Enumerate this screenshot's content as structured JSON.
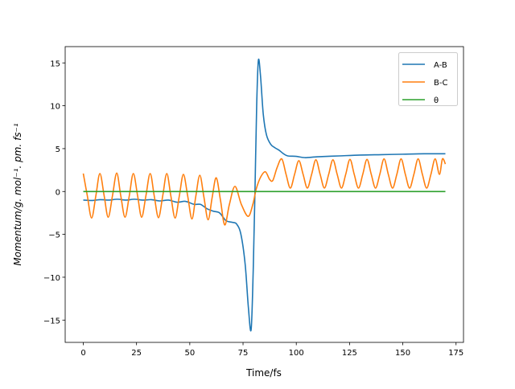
{
  "chart_data": {
    "type": "line",
    "title": "",
    "xlabel": "Time/fs",
    "ylabel": "Momentum/g. mol⁻¹. pm. fs⁻¹",
    "xlim": [
      -8.5,
      178.5
    ],
    "ylim": [
      -17.6,
      16.9
    ],
    "xticks": [
      0,
      25,
      50,
      75,
      100,
      125,
      150,
      175
    ],
    "yticks": [
      -15,
      -10,
      -5,
      0,
      5,
      10,
      15
    ],
    "grid": false,
    "legend_position": "top-right",
    "series": [
      {
        "name": "A-B",
        "color": "#1f77b4",
        "points": [
          [
            0,
            -1.0
          ],
          [
            4,
            -1.05
          ],
          [
            8,
            -0.95
          ],
          [
            12,
            -1.0
          ],
          [
            16,
            -0.9
          ],
          [
            20,
            -1.0
          ],
          [
            24,
            -0.9
          ],
          [
            28,
            -1.0
          ],
          [
            32,
            -0.95
          ],
          [
            36,
            -1.1
          ],
          [
            40,
            -1.0
          ],
          [
            44,
            -1.25
          ],
          [
            48,
            -1.15
          ],
          [
            52,
            -1.5
          ],
          [
            55,
            -1.5
          ],
          [
            58,
            -2.0
          ],
          [
            61,
            -2.3
          ],
          [
            64,
            -2.5
          ],
          [
            67,
            -3.4
          ],
          [
            70,
            -3.6
          ],
          [
            72,
            -3.8
          ],
          [
            74,
            -5.0
          ],
          [
            76,
            -8.5
          ],
          [
            77.5,
            -13.5
          ],
          [
            78.8,
            -16.1
          ],
          [
            79.8,
            -9.0
          ],
          [
            80.6,
            0.0
          ],
          [
            81.4,
            10.0
          ],
          [
            82.2,
            15.3
          ],
          [
            83.2,
            13.5
          ],
          [
            84.5,
            9.0
          ],
          [
            86,
            6.6
          ],
          [
            88,
            5.5
          ],
          [
            90,
            5.1
          ],
          [
            92,
            4.8
          ],
          [
            94,
            4.4
          ],
          [
            96,
            4.15
          ],
          [
            100,
            4.1
          ],
          [
            104,
            3.95
          ],
          [
            110,
            4.05
          ],
          [
            120,
            4.15
          ],
          [
            130,
            4.25
          ],
          [
            140,
            4.3
          ],
          [
            150,
            4.35
          ],
          [
            160,
            4.4
          ],
          [
            170,
            4.4
          ]
        ]
      },
      {
        "name": "B-C",
        "color": "#ff7f0e",
        "points": [
          [
            0,
            2.1
          ],
          [
            1.9,
            -0.5
          ],
          [
            3.9,
            -3.1
          ],
          [
            5.9,
            -0.5
          ],
          [
            7.8,
            2.1
          ],
          [
            9.8,
            -0.5
          ],
          [
            11.7,
            -3.0
          ],
          [
            13.7,
            -0.5
          ],
          [
            15.7,
            2.15
          ],
          [
            17.6,
            -0.5
          ],
          [
            19.6,
            -3.0
          ],
          [
            21.6,
            -0.5
          ],
          [
            23.5,
            2.1
          ],
          [
            25.5,
            -0.5
          ],
          [
            27.4,
            -3.0
          ],
          [
            29.4,
            -0.5
          ],
          [
            31.4,
            2.1
          ],
          [
            33.3,
            -0.5
          ],
          [
            35.3,
            -3.05
          ],
          [
            37.3,
            -0.5
          ],
          [
            39.2,
            2.1
          ],
          [
            41.1,
            -0.5
          ],
          [
            43.1,
            -3.1
          ],
          [
            45.1,
            -0.5
          ],
          [
            47,
            2.0
          ],
          [
            49,
            -0.5
          ],
          [
            51,
            -3.2
          ],
          [
            52.8,
            -0.6
          ],
          [
            54.7,
            1.9
          ],
          [
            56.6,
            -0.6
          ],
          [
            58.6,
            -3.3
          ],
          [
            60.5,
            -0.7
          ],
          [
            62.4,
            1.6
          ],
          [
            64.4,
            -1.0
          ],
          [
            66.4,
            -3.9
          ],
          [
            68.6,
            -1.5
          ],
          [
            71.2,
            0.6
          ],
          [
            74.2,
            -1.5
          ],
          [
            77.4,
            -2.9
          ],
          [
            79.6,
            -1.5
          ],
          [
            81.2,
            0.3
          ],
          [
            83.3,
            1.7
          ],
          [
            85.5,
            2.3
          ],
          [
            87.5,
            1.4
          ],
          [
            89,
            1.3
          ],
          [
            91,
            2.8
          ],
          [
            93.2,
            3.8
          ],
          [
            95.2,
            2.0
          ],
          [
            97.2,
            0.4
          ],
          [
            99.2,
            2.0
          ],
          [
            101.2,
            3.6
          ],
          [
            103.2,
            2.0
          ],
          [
            105.2,
            0.4
          ],
          [
            107.2,
            2.0
          ],
          [
            109.2,
            3.7
          ],
          [
            111.2,
            2.0
          ],
          [
            113.2,
            0.4
          ],
          [
            115.2,
            2.0
          ],
          [
            117.2,
            3.7
          ],
          [
            119.2,
            2.0
          ],
          [
            121.2,
            0.4
          ],
          [
            123.2,
            2.0
          ],
          [
            125.2,
            3.75
          ],
          [
            127.2,
            2.0
          ],
          [
            129.2,
            0.4
          ],
          [
            131.2,
            2.0
          ],
          [
            133.2,
            3.75
          ],
          [
            135.2,
            2.0
          ],
          [
            137.2,
            0.4
          ],
          [
            139.2,
            2.0
          ],
          [
            141.2,
            3.8
          ],
          [
            143.2,
            2.0
          ],
          [
            145.2,
            0.4
          ],
          [
            147.2,
            2.0
          ],
          [
            149.2,
            3.8
          ],
          [
            151.2,
            2.0
          ],
          [
            153.2,
            0.4
          ],
          [
            155.2,
            2.0
          ],
          [
            157.2,
            3.8
          ],
          [
            159.2,
            2.0
          ],
          [
            161.2,
            0.4
          ],
          [
            163.2,
            2.0
          ],
          [
            165.2,
            3.8
          ],
          [
            167.2,
            2.0
          ],
          [
            168.6,
            3.8
          ],
          [
            170,
            3.2
          ]
        ]
      },
      {
        "name": "θ",
        "color": "#2ca02c",
        "points": [
          [
            0,
            0
          ],
          [
            170,
            0
          ]
        ]
      }
    ]
  }
}
